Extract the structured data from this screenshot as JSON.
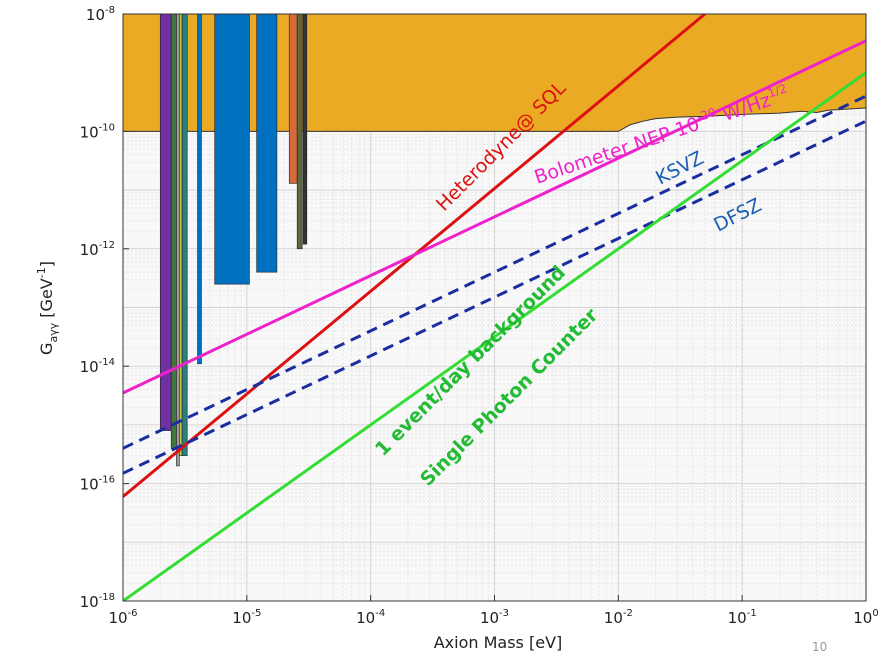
{
  "page_number": "10",
  "chart_data": {
    "type": "line",
    "title": "",
    "xlabel": "Axion Mass [eV]",
    "ylabel_base": "G",
    "ylabel_sub": "aγγ",
    "ylabel_unit_pre": " [GeV",
    "ylabel_unit_exp": "-1",
    "ylabel_unit_post": "]",
    "x_scale": "log",
    "y_scale": "log",
    "xlim": [
      1e-06,
      1
    ],
    "ylim": [
      1e-18,
      1e-08
    ],
    "grid": true,
    "x_ticks": [
      {
        "base": "10",
        "exp": "-6",
        "value": 1e-06
      },
      {
        "base": "10",
        "exp": "-5",
        "value": 1e-05
      },
      {
        "base": "10",
        "exp": "-4",
        "value": 0.0001
      },
      {
        "base": "10",
        "exp": "-3",
        "value": 0.001
      },
      {
        "base": "10",
        "exp": "-2",
        "value": 0.01
      },
      {
        "base": "10",
        "exp": "-1",
        "value": 0.1
      },
      {
        "base": "10",
        "exp": "0",
        "value": 1
      }
    ],
    "y_ticks": [
      {
        "base": "10",
        "exp": "-18",
        "value": 1e-18
      },
      {
        "base": "10",
        "exp": "-16",
        "value": 1e-16
      },
      {
        "base": "10",
        "exp": "-14",
        "value": 1e-14
      },
      {
        "base": "10",
        "exp": "-12",
        "value": 1e-12
      },
      {
        "base": "10",
        "exp": "-10",
        "value": 1e-10
      },
      {
        "base": "10",
        "exp": "-8",
        "value": 1e-08
      }
    ],
    "excluded_region": {
      "color": "#eaaa24",
      "y_min": 1e-10,
      "y_max": 1e-08,
      "x_range": [
        1e-06,
        1
      ],
      "edge_points": [
        [
          1e-06,
          1e-10
        ],
        [
          0.01,
          1e-10
        ],
        [
          0.0125,
          1.3e-10
        ],
        [
          0.016,
          1.5e-10
        ],
        [
          0.02,
          1.65e-10
        ],
        [
          0.03,
          1.75e-10
        ],
        [
          0.05,
          1.8e-10
        ],
        [
          0.1,
          1.95e-10
        ],
        [
          0.2,
          2.05e-10
        ],
        [
          0.3,
          2.2e-10
        ],
        [
          0.4,
          2.1e-10
        ],
        [
          0.5,
          2.3e-10
        ],
        [
          0.7,
          2.4e-10
        ],
        [
          1,
          2.5e-10
        ]
      ]
    },
    "experiment_bands": [
      {
        "color": "#7030a0",
        "x_range": [
          2e-06,
          2.45e-06
        ],
        "y_bottom": 8e-16,
        "y_top": 1e-08
      },
      {
        "color": "#3d7a3a",
        "x_range": [
          2.45e-06,
          2.7e-06
        ],
        "y_bottom": 4e-16,
        "y_top": 1e-08
      },
      {
        "color": "#9a9a9a",
        "x_range": [
          2.7e-06,
          2.85e-06
        ],
        "y_bottom": 2e-16,
        "y_top": 1e-08
      },
      {
        "color": "#c8c840",
        "x_range": [
          2.85e-06,
          3e-06
        ],
        "y_bottom": 3e-16,
        "y_top": 1e-08
      },
      {
        "color": "#2a7f7f",
        "x_range": [
          3e-06,
          3.3e-06
        ],
        "y_bottom": 3e-16,
        "y_top": 1e-08
      },
      {
        "color": "#0070c0",
        "x_range": [
          4e-06,
          4.3e-06
        ],
        "y_bottom": 1.1e-14,
        "y_top": 1e-08
      },
      {
        "color": "#0070c0",
        "x_range": [
          5.5e-06,
          1.05e-05
        ],
        "y_bottom": 2.5e-13,
        "y_top": 1e-08
      },
      {
        "color": "#0070c0",
        "x_range": [
          1.2e-05,
          1.75e-05
        ],
        "y_bottom": 4e-13,
        "y_top": 1e-08
      },
      {
        "color": "#d46a3a",
        "x_range": [
          2.2e-05,
          2.55e-05
        ],
        "y_bottom": 1.3e-11,
        "y_top": 1e-08
      },
      {
        "color": "#5a6a3a",
        "x_range": [
          2.55e-05,
          2.8e-05
        ],
        "y_bottom": 1e-12,
        "y_top": 1e-08
      },
      {
        "color": "#333333",
        "x_range": [
          2.85e-05,
          3.05e-05
        ],
        "y_bottom": 1.2e-12,
        "y_top": 1e-08
      }
    ],
    "series": [
      {
        "name": "Heterodyne@ SQL",
        "color": "#dd1111",
        "dash": false,
        "x": [
          1e-06,
          0.05
        ],
        "y": [
          6e-17,
          1e-08
        ]
      },
      {
        "name": "Bolometer NEP 10-20 W/Hz1/2",
        "color": "#ee22cc",
        "dash": false,
        "x": [
          1e-06,
          1
        ],
        "y": [
          3.5e-15,
          3.5e-09
        ]
      },
      {
        "name": "KSVZ",
        "color": "#1a2ea0",
        "dash": true,
        "x": [
          1e-06,
          1
        ],
        "y": [
          4e-16,
          4e-10
        ]
      },
      {
        "name": "DFSZ",
        "color": "#1a2ea0",
        "dash": true,
        "x": [
          1e-06,
          1
        ],
        "y": [
          1.5e-16,
          1.5e-10
        ]
      },
      {
        "name": "1 event/day background Single Photon Counter",
        "color": "#33dd33",
        "dash": false,
        "x": [
          1e-06,
          1
        ],
        "y": [
          1e-18,
          1e-09
        ]
      }
    ],
    "annotations": [
      {
        "key": "heterodyne",
        "text": "Heterodyne@ SQL",
        "color": "#dd1111"
      },
      {
        "key": "bolometer",
        "text": "Bolometer NEP 10",
        "exp1": "-20",
        "text2": " W/Hz",
        "exp2": "1/2",
        "color": "#ee22cc"
      },
      {
        "key": "ksvz",
        "text": "KSVZ",
        "color": "#1a5fb4"
      },
      {
        "key": "dfsz",
        "text": "DFSZ",
        "color": "#1a5fb4"
      },
      {
        "key": "event",
        "text": "1 event/day background",
        "color": "#22bb33"
      },
      {
        "key": "spc",
        "text": "Single Photon Counter",
        "color": "#22bb33"
      }
    ]
  }
}
